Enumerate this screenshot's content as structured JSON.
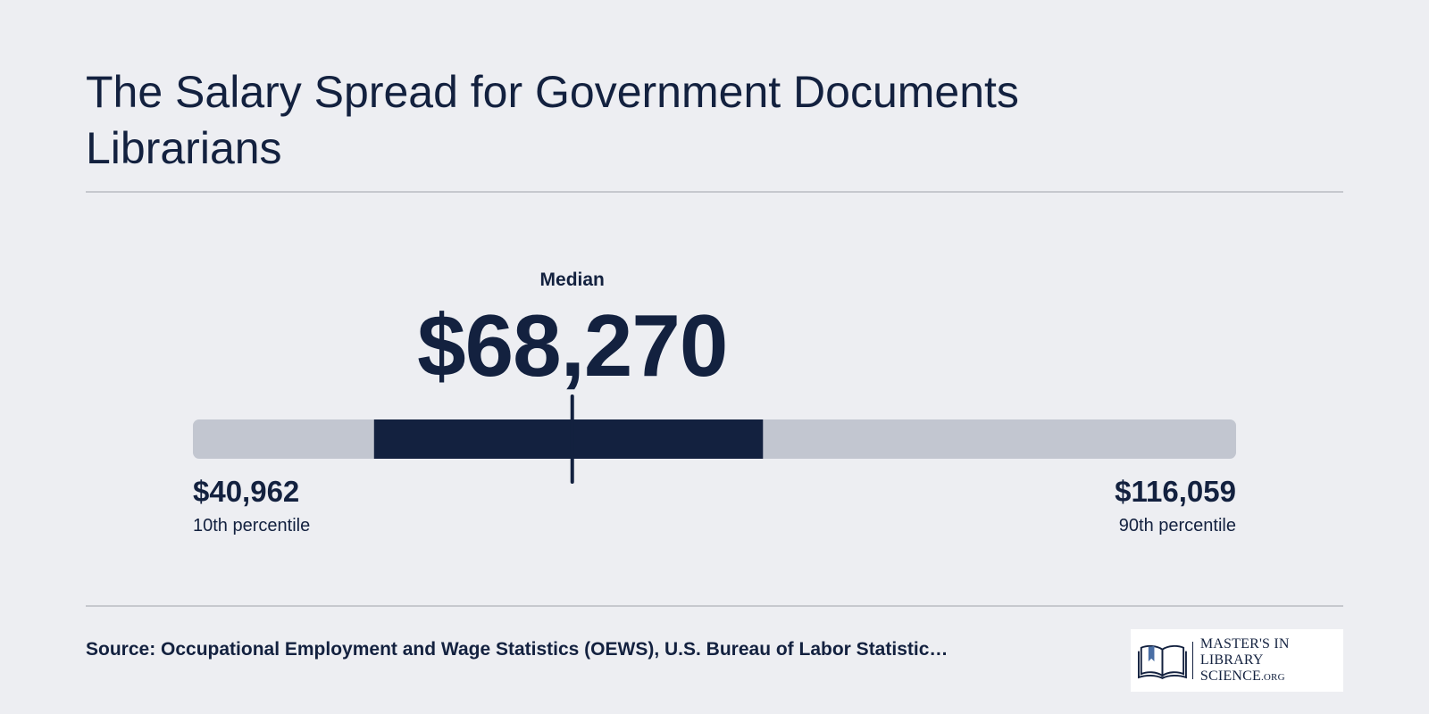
{
  "title": "The Salary Spread for Government Documents Librarians",
  "chart_data": {
    "type": "range",
    "title": "The Salary Spread for Government Documents Librarians",
    "median": {
      "label": "Median",
      "value": 68270,
      "display": "$68,270"
    },
    "low": {
      "label": "10th percentile",
      "value": 40962,
      "display": "$40,962"
    },
    "high": {
      "label": "90th percentile",
      "value": 116059,
      "display": "$116,059"
    },
    "iqr": {
      "start": 54000,
      "end": 82000
    },
    "colors": {
      "track": "#c2c6d0",
      "iqr": "#13213f",
      "marker": "#13213f"
    }
  },
  "source": "Source: Occupational Employment and Wage Statistics (OEWS), U.S. Bureau of Labor Statistic…",
  "logo": {
    "icon": "open-book-icon",
    "line1": "MASTER'S IN",
    "line2": "LIBRARY SCIENCE",
    "suffix": ".ORG"
  }
}
